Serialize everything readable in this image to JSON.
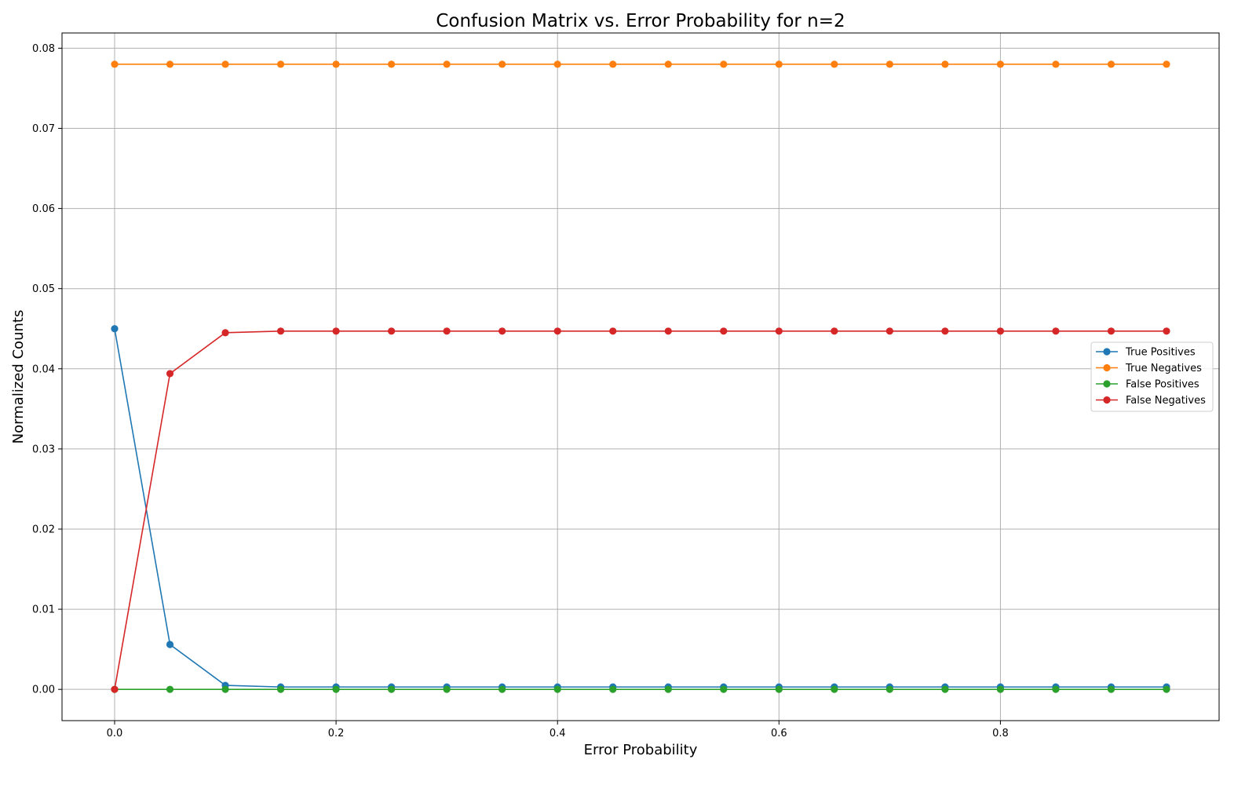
{
  "chart_data": {
    "type": "line",
    "title": "Confusion Matrix vs. Error Probability for n=2",
    "xlabel": "Error Probability",
    "ylabel": "Normalized Counts",
    "xlim": [
      -0.0475,
      0.9975
    ],
    "ylim": [
      -0.0039,
      0.0819
    ],
    "xticks": [
      0.0,
      0.2,
      0.4,
      0.6,
      0.8
    ],
    "xtick_labels": [
      "0.0",
      "0.2",
      "0.4",
      "0.6",
      "0.8"
    ],
    "yticks": [
      0.0,
      0.01,
      0.02,
      0.03,
      0.04,
      0.05,
      0.06,
      0.07,
      0.08
    ],
    "ytick_labels": [
      "0.00",
      "0.01",
      "0.02",
      "0.03",
      "0.04",
      "0.05",
      "0.06",
      "0.07",
      "0.08"
    ],
    "grid": true,
    "legend_position": "center-right",
    "x": [
      0.0,
      0.05,
      0.1,
      0.15,
      0.2,
      0.25,
      0.3,
      0.35,
      0.4,
      0.45,
      0.5,
      0.55,
      0.6,
      0.65,
      0.7,
      0.75,
      0.8,
      0.85,
      0.9,
      0.95
    ],
    "series": [
      {
        "name": "True Positives",
        "color": "#1f77b4",
        "values": [
          0.045,
          0.0056,
          0.0005,
          0.0003,
          0.0003,
          0.0003,
          0.0003,
          0.0003,
          0.0003,
          0.0003,
          0.0003,
          0.0003,
          0.0003,
          0.0003,
          0.0003,
          0.0003,
          0.0003,
          0.0003,
          0.0003,
          0.0003
        ]
      },
      {
        "name": "True Negatives",
        "color": "#ff7f0e",
        "values": [
          0.078,
          0.078,
          0.078,
          0.078,
          0.078,
          0.078,
          0.078,
          0.078,
          0.078,
          0.078,
          0.078,
          0.078,
          0.078,
          0.078,
          0.078,
          0.078,
          0.078,
          0.078,
          0.078,
          0.078
        ]
      },
      {
        "name": "False Positives",
        "color": "#2ca02c",
        "values": [
          0.0,
          0.0,
          0.0,
          0.0,
          0.0,
          0.0,
          0.0,
          0.0,
          0.0,
          0.0,
          0.0,
          0.0,
          0.0,
          0.0,
          0.0,
          0.0,
          0.0,
          0.0,
          0.0,
          0.0
        ]
      },
      {
        "name": "False Negatives",
        "color": "#d62728",
        "values": [
          0.0,
          0.0394,
          0.0445,
          0.0447,
          0.0447,
          0.0447,
          0.0447,
          0.0447,
          0.0447,
          0.0447,
          0.0447,
          0.0447,
          0.0447,
          0.0447,
          0.0447,
          0.0447,
          0.0447,
          0.0447,
          0.0447,
          0.0447
        ]
      }
    ]
  }
}
